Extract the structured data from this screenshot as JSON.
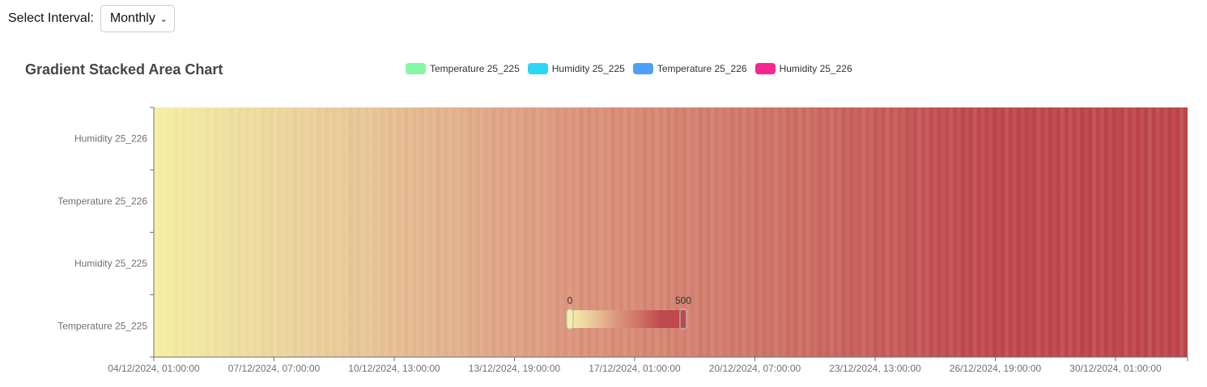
{
  "controls": {
    "interval_label": "Select Interval:",
    "interval_value": "Monthly"
  },
  "colors": {
    "gradient": [
      "#f5f0a6",
      "#e9c99a",
      "#dd9880",
      "#cf7468",
      "#c0494d",
      "#be474b"
    ],
    "legend": [
      "#85f7a7",
      "#2ad8f2",
      "#4ba1f6",
      "#f7268e"
    ]
  },
  "chart_data": {
    "type": "heatmap",
    "title": "Gradient Stacked Area Chart",
    "legend": [
      "Temperature 25_225",
      "Humidity 25_225",
      "Temperature 25_226",
      "Humidity 25_226"
    ],
    "legend_position": "top-center",
    "y_categories": [
      "Temperature 25_225",
      "Humidity 25_225",
      "Temperature 25_226",
      "Humidity 25_226"
    ],
    "x_tick_labels": [
      "04/12/2024, 01:00:00",
      "07/12/2024, 07:00:00",
      "10/12/2024, 13:00:00",
      "13/12/2024, 19:00:00",
      "17/12/2024, 01:00:00",
      "20/12/2024, 07:00:00",
      "23/12/2024, 13:00:00",
      "26/12/2024, 19:00:00",
      "30/12/2024, 01:00:00"
    ],
    "visual_map": {
      "min": 0,
      "max": 500,
      "min_label": "0",
      "max_label": "500"
    },
    "grid": false
  }
}
